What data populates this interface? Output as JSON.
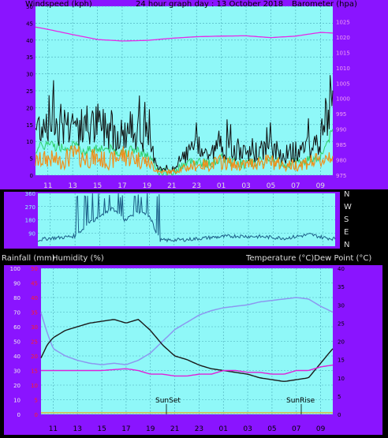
{
  "header": {
    "left": "Windspeed (kph)",
    "center": "24 hour graph day : 13 October 2018",
    "right": "Barometer (hpa)"
  },
  "dir_labels": [
    "N",
    "W",
    "S",
    "E",
    "N"
  ],
  "panel3_header": {
    "left1": "Rainfall (mm)",
    "left2": "Humidity (%)",
    "right": "Temperature (°C)Dew Point (°C)"
  },
  "annotations": {
    "sunset": "SunSet",
    "sunrise": "SunRise"
  },
  "x_ticks": [
    "11",
    "13",
    "15",
    "17",
    "19",
    "21",
    "23",
    "01",
    "03",
    "05",
    "07",
    "09"
  ],
  "colors": {
    "frame": "#8a14ff",
    "plot_bg": "#8ff8f8",
    "grid": "#4aa9b8",
    "wind": "#101010",
    "gust": "#f0901c",
    "wind_green": "#2fd06a",
    "barometer": "#e62ae6",
    "direction": "#1b5d87",
    "temperature": "#1a1a1a",
    "humidity": "#8c98f0",
    "dewpoint": "#e020d8",
    "rain_axis": "#ff2020"
  },
  "chart_data": [
    {
      "type": "line",
      "title": "24 hour graph day : 13 October 2018",
      "x_ticks": [
        "11",
        "13",
        "15",
        "17",
        "19",
        "21",
        "23",
        "01",
        "03",
        "05",
        "07",
        "09"
      ],
      "y_left": {
        "label": "Windspeed (kph)",
        "range": [
          0,
          50
        ],
        "ticks": [
          0,
          5,
          10,
          15,
          20,
          25,
          30,
          35,
          40,
          45,
          50
        ]
      },
      "y_right": {
        "label": "Barometer (hpa)",
        "range": [
          975,
          1030
        ],
        "ticks": [
          975,
          980,
          985,
          990,
          995,
          1000,
          1005,
          1010,
          1015,
          1020,
          1025
        ]
      },
      "grid": true,
      "series": [
        {
          "name": "Windspeed (kph)",
          "axis": "left",
          "x": [
            10,
            11,
            12,
            13,
            14,
            15,
            16,
            17,
            18,
            19,
            20,
            21,
            22,
            23,
            24,
            25,
            26,
            27,
            28,
            29,
            30,
            31,
            32,
            33,
            34
          ],
          "values": [
            14,
            17,
            15,
            16,
            13,
            15,
            14,
            12,
            14,
            11,
            2,
            1,
            6,
            8,
            6,
            9,
            7,
            6,
            7,
            8,
            6,
            7,
            8,
            10,
            24
          ]
        },
        {
          "name": "Gust",
          "axis": "left",
          "x": [
            10,
            11,
            12,
            13,
            14,
            15,
            16,
            17,
            18,
            19,
            20,
            21,
            22,
            23,
            24,
            25,
            26,
            27,
            28,
            29,
            30,
            31,
            32,
            33,
            34
          ],
          "values": [
            4,
            5,
            4,
            6,
            5,
            5,
            4,
            6,
            5,
            4,
            1,
            1,
            2,
            3,
            3,
            4,
            3,
            3,
            4,
            4,
            3,
            3,
            4,
            4,
            7
          ]
        },
        {
          "name": "Barometer (hpa)",
          "axis": "right",
          "x": [
            9.8,
            11,
            13,
            15,
            17,
            19,
            21,
            23,
            25,
            27,
            29,
            31,
            33,
            34
          ],
          "values": [
            1023.4,
            1022.5,
            1020.8,
            1019.2,
            1018.7,
            1018.9,
            1019.6,
            1020.1,
            1020.3,
            1020.4,
            1019.8,
            1020.3,
            1021.5,
            1021.3
          ]
        }
      ]
    },
    {
      "type": "line",
      "x_ticks": [
        "11",
        "13",
        "15",
        "17",
        "19",
        "21",
        "23",
        "01",
        "03",
        "05",
        "07",
        "09"
      ],
      "y_left": {
        "range": [
          0,
          360
        ],
        "ticks": [
          90,
          180,
          270,
          360
        ]
      },
      "y_right": {
        "ticks": [
          "N",
          "W",
          "S",
          "E",
          "N"
        ]
      },
      "series": [
        {
          "name": "Wind direction",
          "x": [
            9.8,
            11,
            12,
            13,
            14,
            15,
            16,
            17,
            18,
            19,
            19.8,
            20,
            22,
            24,
            26,
            28,
            30,
            32,
            33,
            34
          ],
          "values": [
            40,
            55,
            60,
            70,
            150,
            200,
            260,
            180,
            230,
            210,
            45,
            40,
            45,
            60,
            70,
            65,
            55,
            80,
            60,
            50
          ]
        }
      ]
    },
    {
      "type": "line",
      "x_ticks": [
        "11",
        "13",
        "15",
        "17",
        "19",
        "21",
        "23",
        "01",
        "03",
        "05",
        "07",
        "09"
      ],
      "y_left": {
        "label": "Humidity (%)",
        "range": [
          0,
          100
        ],
        "ticks": [
          0,
          10,
          20,
          30,
          40,
          50,
          60,
          70,
          80,
          90,
          100
        ]
      },
      "y_left_inner": {
        "label": "Rainfall (mm)",
        "range": [
          0,
          50
        ],
        "ticks": [
          0,
          5,
          10,
          15,
          20,
          25,
          30,
          35,
          40,
          45,
          50
        ]
      },
      "y_right": {
        "label": "Temperature (°C)Dew Point (°C)",
        "range": [
          0,
          40
        ],
        "ticks": [
          0,
          5,
          10,
          15,
          20,
          25,
          30,
          35,
          40
        ]
      },
      "grid": true,
      "series": [
        {
          "name": "Humidity (%)",
          "axis": "left",
          "x": [
            9.8,
            10.5,
            11,
            12,
            13,
            14,
            15,
            16,
            17,
            18,
            19,
            20,
            21,
            22,
            23,
            24,
            25,
            26,
            27,
            28,
            29,
            30,
            31,
            32,
            33,
            34
          ],
          "values": [
            75,
            56,
            45,
            40,
            37,
            35,
            34,
            35,
            34,
            37,
            42,
            50,
            58,
            63,
            68,
            71,
            73,
            74,
            75,
            77,
            78,
            79,
            80,
            79,
            74,
            70
          ]
        },
        {
          "name": "Temperature (°C)",
          "axis": "right",
          "x": [
            9.8,
            10.5,
            11,
            12,
            13,
            14,
            15,
            16,
            17,
            18,
            19,
            20,
            21,
            22,
            23,
            24,
            25,
            26,
            27,
            28,
            29,
            30,
            31,
            32,
            33,
            34
          ],
          "values": [
            14,
            19,
            21,
            23,
            24,
            25,
            25.5,
            26,
            25,
            26,
            23,
            19,
            16,
            15,
            13.5,
            12.5,
            12,
            11.5,
            11,
            10,
            9.5,
            9,
            9.5,
            10,
            14,
            18
          ]
        },
        {
          "name": "Dew Point (°C)",
          "axis": "right",
          "x": [
            9.8,
            11,
            13,
            15,
            17,
            18,
            19,
            20,
            21,
            22,
            23,
            24,
            25,
            26,
            27,
            28,
            29,
            30,
            31,
            32,
            33,
            34
          ],
          "values": [
            12,
            12,
            12,
            12,
            12.5,
            12,
            11,
            11,
            10.5,
            10.5,
            11,
            11,
            12,
            12,
            11.5,
            11.5,
            11,
            11,
            12,
            12,
            13,
            13.5
          ]
        }
      ]
    }
  ]
}
